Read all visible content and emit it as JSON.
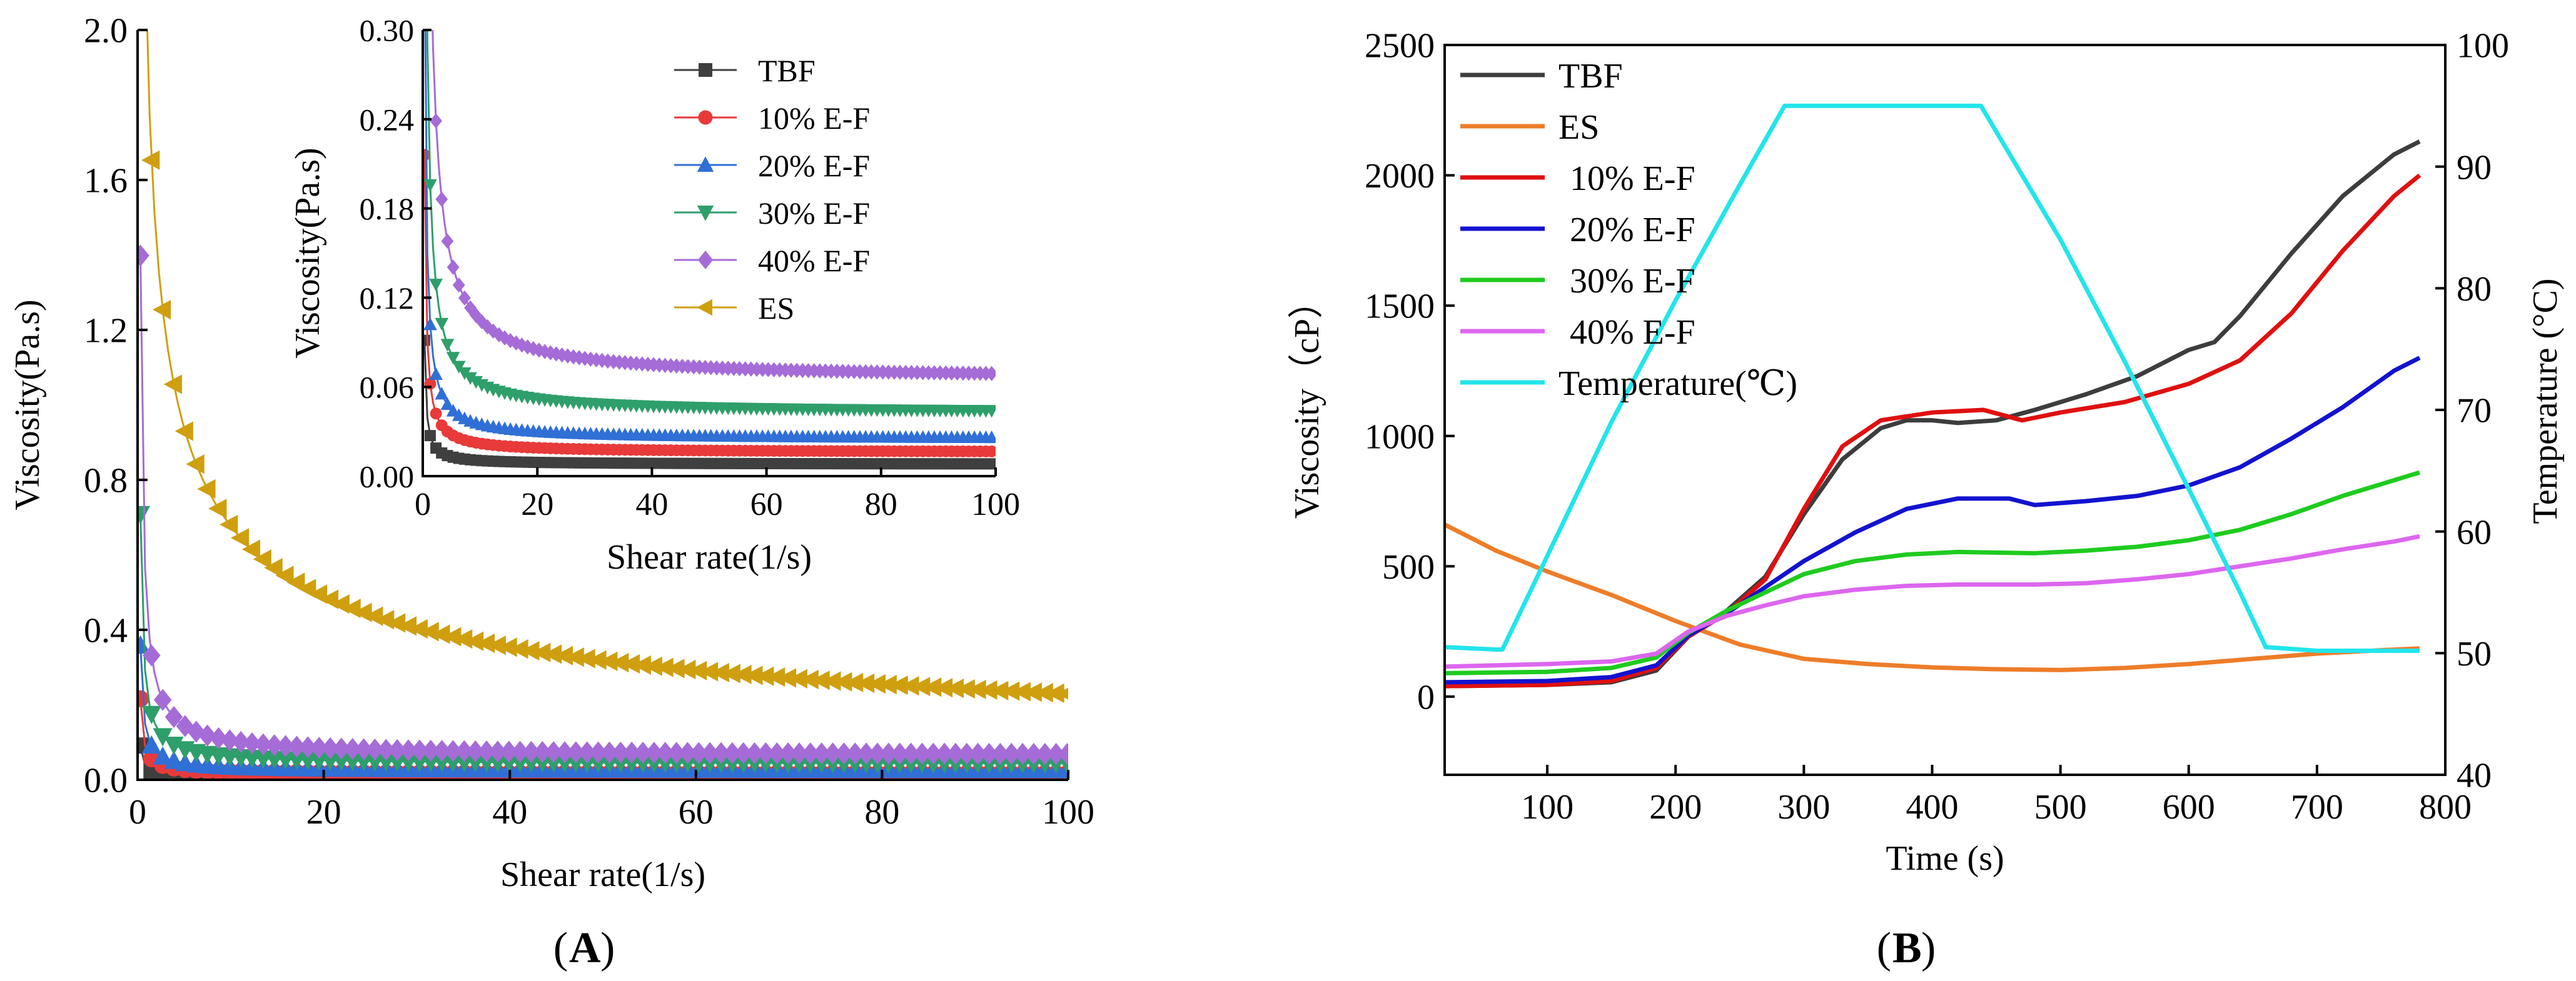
{
  "panel_labels": {
    "a_open": "(",
    "a_letter": "A",
    "a_close": ")",
    "b_open": "(",
    "b_letter": "B",
    "b_close": ")"
  },
  "chart_data": [
    {
      "id": "A-main",
      "type": "line",
      "xlabel": "Shear rate(1/s)",
      "ylabel": "Viscosity(Pa.s)",
      "xlim": [
        0,
        100
      ],
      "ylim": [
        0,
        2.0
      ],
      "xticks": [
        "0",
        "20",
        "40",
        "60",
        "80",
        "100"
      ],
      "yticks": [
        "0.0",
        "0.4",
        "0.8",
        "1.2",
        "1.6",
        "2.0"
      ],
      "series": [
        {
          "name": "TBF",
          "color": "#3f3f3f",
          "marker": "square",
          "eta_inf": 0.008,
          "k": 0.025
        },
        {
          "name": "10% E-F",
          "color": "#e8393b",
          "marker": "circle",
          "eta_inf": 0.016,
          "k": 0.06
        },
        {
          "name": "20% E-F",
          "color": "#2f6fd6",
          "marker": "triangle-up",
          "eta_inf": 0.025,
          "k": 0.1
        },
        {
          "name": "30% E-F",
          "color": "#2e9e6a",
          "marker": "triangle-down",
          "eta_inf": 0.042,
          "k": 0.2
        },
        {
          "name": "40% E-F",
          "color": "#a56bd6",
          "marker": "diamond",
          "eta_inf": 0.065,
          "k": 0.4
        },
        {
          "name": "ES",
          "color": "#cf9f10",
          "marker": "triangle-left",
          "eta_inf": 0.0,
          "k": 2.0,
          "n": 0.53
        }
      ]
    },
    {
      "id": "A-inset",
      "type": "line",
      "xlabel": "Shear rate(1/s)",
      "ylabel": "Viscosity(Pa.s)",
      "xlim": [
        0,
        100
      ],
      "ylim": [
        0,
        0.3
      ],
      "xticks": [
        "0",
        "20",
        "40",
        "60",
        "80",
        "100"
      ],
      "yticks": [
        "0.00",
        "0.06",
        "0.12",
        "0.18",
        "0.24",
        "0.30"
      ],
      "legend": [
        "TBF",
        "10% E-F",
        "20% E-F",
        "30% E-F",
        "40% E-F",
        "ES"
      ]
    },
    {
      "id": "B",
      "type": "line",
      "xlabel": "Time (s)",
      "ylabel": "Viscosity（cP）",
      "y2label": "Temperature (°C)",
      "xlim": [
        20,
        800
      ],
      "ylim": [
        -300,
        2500
      ],
      "y2lim": [
        40,
        100
      ],
      "xticks": [
        "100",
        "200",
        "300",
        "400",
        "500",
        "600",
        "700",
        "800"
      ],
      "yticks": [
        "0",
        "500",
        "1000",
        "1500",
        "2000",
        "2500"
      ],
      "y2ticks": [
        "40",
        "50",
        "60",
        "70",
        "80",
        "90",
        "100"
      ],
      "series": [
        {
          "name": "TBF",
          "color": "#3d3d3d",
          "axis": "left",
          "points": [
            [
              20,
              40
            ],
            [
              100,
              45
            ],
            [
              150,
              55
            ],
            [
              185,
              100
            ],
            [
              210,
              230
            ],
            [
              240,
              330
            ],
            [
              270,
              460
            ],
            [
              300,
              700
            ],
            [
              330,
              910
            ],
            [
              360,
              1030
            ],
            [
              380,
              1060
            ],
            [
              400,
              1060
            ],
            [
              420,
              1050
            ],
            [
              450,
              1060
            ],
            [
              480,
              1100
            ],
            [
              520,
              1160
            ],
            [
              560,
              1230
            ],
            [
              600,
              1330
            ],
            [
              620,
              1360
            ],
            [
              640,
              1460
            ],
            [
              680,
              1700
            ],
            [
              720,
              1920
            ],
            [
              760,
              2080
            ],
            [
              780,
              2130
            ]
          ]
        },
        {
          "name": "ES",
          "color": "#ee7d2a",
          "axis": "left",
          "points": [
            [
              20,
              660
            ],
            [
              60,
              560
            ],
            [
              100,
              480
            ],
            [
              150,
              390
            ],
            [
              200,
              290
            ],
            [
              250,
              200
            ],
            [
              300,
              145
            ],
            [
              350,
              125
            ],
            [
              400,
              112
            ],
            [
              450,
              105
            ],
            [
              500,
              102
            ],
            [
              550,
              110
            ],
            [
              600,
              125
            ],
            [
              650,
              145
            ],
            [
              700,
              165
            ],
            [
              750,
              178
            ],
            [
              780,
              185
            ]
          ]
        },
        {
          "name": "10% E-F",
          "color": "#e01010",
          "axis": "left",
          "points": [
            [
              20,
              40
            ],
            [
              100,
              45
            ],
            [
              150,
              60
            ],
            [
              185,
              110
            ],
            [
              210,
              230
            ],
            [
              240,
              320
            ],
            [
              270,
              450
            ],
            [
              300,
              720
            ],
            [
              330,
              960
            ],
            [
              360,
              1060
            ],
            [
              400,
              1090
            ],
            [
              440,
              1100
            ],
            [
              470,
              1060
            ],
            [
              500,
              1090
            ],
            [
              550,
              1130
            ],
            [
              600,
              1200
            ],
            [
              640,
              1290
            ],
            [
              680,
              1470
            ],
            [
              720,
              1710
            ],
            [
              760,
              1920
            ],
            [
              780,
              2000
            ]
          ]
        },
        {
          "name": "20% E-F",
          "color": "#1212cf",
          "axis": "left",
          "points": [
            [
              20,
              55
            ],
            [
              100,
              60
            ],
            [
              150,
              75
            ],
            [
              185,
              120
            ],
            [
              210,
              235
            ],
            [
              240,
              320
            ],
            [
              270,
              420
            ],
            [
              300,
              520
            ],
            [
              340,
              630
            ],
            [
              380,
              720
            ],
            [
              420,
              760
            ],
            [
              460,
              760
            ],
            [
              480,
              735
            ],
            [
              520,
              750
            ],
            [
              560,
              770
            ],
            [
              600,
              810
            ],
            [
              640,
              880
            ],
            [
              680,
              990
            ],
            [
              720,
              1110
            ],
            [
              760,
              1250
            ],
            [
              780,
              1300
            ]
          ]
        },
        {
          "name": "30% E-F",
          "color": "#1ecb1e",
          "axis": "left",
          "points": [
            [
              20,
              90
            ],
            [
              100,
              95
            ],
            [
              150,
              110
            ],
            [
              185,
              150
            ],
            [
              210,
              245
            ],
            [
              240,
              330
            ],
            [
              270,
              400
            ],
            [
              300,
              470
            ],
            [
              340,
              520
            ],
            [
              380,
              545
            ],
            [
              420,
              555
            ],
            [
              480,
              550
            ],
            [
              520,
              560
            ],
            [
              560,
              575
            ],
            [
              600,
              600
            ],
            [
              640,
              640
            ],
            [
              680,
              700
            ],
            [
              720,
              770
            ],
            [
              760,
              830
            ],
            [
              780,
              860
            ]
          ]
        },
        {
          "name": "40% E-F",
          "color": "#dd66ee",
          "axis": "left",
          "points": [
            [
              20,
              115
            ],
            [
              100,
              125
            ],
            [
              150,
              135
            ],
            [
              185,
              165
            ],
            [
              210,
              250
            ],
            [
              240,
              310
            ],
            [
              270,
              350
            ],
            [
              300,
              385
            ],
            [
              340,
              410
            ],
            [
              380,
              425
            ],
            [
              420,
              430
            ],
            [
              480,
              430
            ],
            [
              520,
              435
            ],
            [
              560,
              450
            ],
            [
              600,
              470
            ],
            [
              640,
              500
            ],
            [
              680,
              530
            ],
            [
              720,
              565
            ],
            [
              760,
              595
            ],
            [
              780,
              615
            ]
          ]
        },
        {
          "name": "Temperature(℃)",
          "color": "#22e5ec",
          "axis": "right",
          "points": [
            [
              20,
              50.5
            ],
            [
              60,
              50.3
            ],
            [
              65,
              50.3
            ],
            [
              100,
              58
            ],
            [
              150,
              69
            ],
            [
              200,
              79
            ],
            [
              250,
              88.5
            ],
            [
              285,
              95
            ],
            [
              330,
              95
            ],
            [
              380,
              95
            ],
            [
              438,
              95
            ],
            [
              500,
              84
            ],
            [
              550,
              74
            ],
            [
              600,
              63.5
            ],
            [
              640,
              55
            ],
            [
              660,
              50.5
            ],
            [
              700,
              50.2
            ],
            [
              780,
              50.2
            ]
          ]
        }
      ]
    }
  ]
}
